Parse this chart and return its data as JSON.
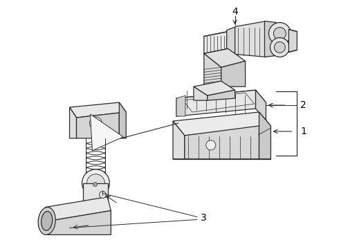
{
  "background_color": "#ffffff",
  "line_color": "#2a2a2a",
  "label_color": "#000000",
  "figsize": [
    4.9,
    3.6
  ],
  "dpi": 100,
  "label_fontsize": 10
}
